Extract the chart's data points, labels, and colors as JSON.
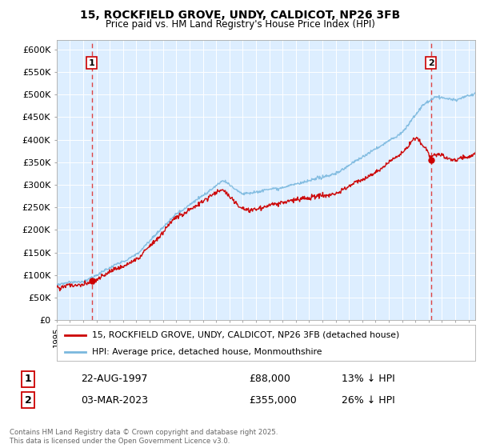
{
  "title_line1": "15, ROCKFIELD GROVE, UNDY, CALDICOT, NP26 3FB",
  "title_line2": "Price paid vs. HM Land Registry's House Price Index (HPI)",
  "ylabel_ticks": [
    "£0",
    "£50K",
    "£100K",
    "£150K",
    "£200K",
    "£250K",
    "£300K",
    "£350K",
    "£400K",
    "£450K",
    "£500K",
    "£550K",
    "£600K"
  ],
  "ytick_values": [
    0,
    50000,
    100000,
    150000,
    200000,
    250000,
    300000,
    350000,
    400000,
    450000,
    500000,
    550000,
    600000
  ],
  "ylim": [
    0,
    620000
  ],
  "xlim_start": 1995.0,
  "xlim_end": 2026.5,
  "hpi_color": "#7ab8de",
  "price_color": "#cc0000",
  "dashed_color": "#dd4444",
  "plot_bg": "#ddeeff",
  "grid_color": "#ffffff",
  "legend_label_price": "15, ROCKFIELD GROVE, UNDY, CALDICOT, NP26 3FB (detached house)",
  "legend_label_hpi": "HPI: Average price, detached house, Monmouthshire",
  "annotation1_date": "22-AUG-1997",
  "annotation1_price": "£88,000",
  "annotation1_note": "13% ↓ HPI",
  "annotation2_date": "03-MAR-2023",
  "annotation2_price": "£355,000",
  "annotation2_note": "26% ↓ HPI",
  "purchase1_x": 1997.64,
  "purchase1_y": 88000,
  "purchase2_x": 2023.17,
  "purchase2_y": 355000,
  "footer": "Contains HM Land Registry data © Crown copyright and database right 2025.\nThis data is licensed under the Open Government Licence v3.0."
}
